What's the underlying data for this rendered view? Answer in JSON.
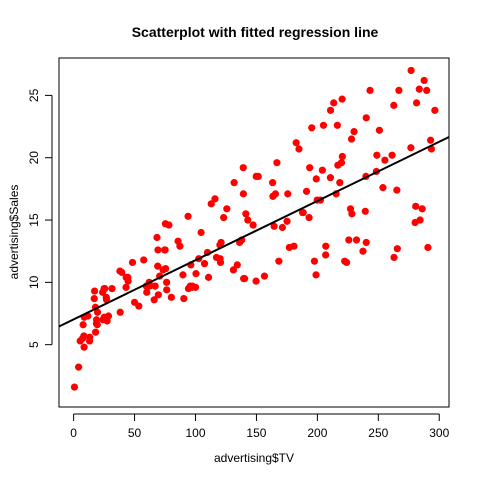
{
  "chart_data": {
    "type": "scatter",
    "title": "Scatterplot with fitted regression line",
    "xlabel": "advertising$TV",
    "ylabel": "advertising$Sales",
    "xlim": [
      -12,
      308
    ],
    "ylim": [
      0,
      28
    ],
    "x_ticks": [
      "0",
      "50",
      "100",
      "150",
      "200",
      "250",
      "300"
    ],
    "y_ticks": [
      "5",
      "10",
      "15",
      "20",
      "25"
    ],
    "grid": false,
    "point_color": "#ff0000",
    "line_color": "#000000",
    "regression_line": {
      "intercept": 7.03,
      "slope": 0.0475
    },
    "points": [
      [
        0.7,
        1.6
      ],
      [
        4.1,
        3.2
      ],
      [
        5.4,
        5.3
      ],
      [
        7.3,
        5.5
      ],
      [
        7.8,
        6.6
      ],
      [
        8.4,
        5.7
      ],
      [
        8.6,
        4.8
      ],
      [
        8.7,
        7.2
      ],
      [
        11.7,
        7.3
      ],
      [
        13.1,
        5.3
      ],
      [
        13.2,
        5.6
      ],
      [
        16.9,
        8.7
      ],
      [
        17.2,
        9.3
      ],
      [
        17.9,
        8.0
      ],
      [
        18.7,
        6.7
      ],
      [
        19.4,
        6.6
      ],
      [
        18.8,
        7.0
      ],
      [
        19.6,
        7.6
      ],
      [
        23.8,
        9.2
      ],
      [
        25.0,
        9.5
      ],
      [
        25.1,
        7.2
      ],
      [
        25.6,
        9.5
      ],
      [
        26.8,
        8.8
      ],
      [
        27.5,
        6.9
      ],
      [
        28.6,
        7.3
      ],
      [
        31.5,
        9.5
      ],
      [
        38.0,
        10.9
      ],
      [
        38.2,
        7.6
      ],
      [
        39.5,
        10.8
      ],
      [
        43.0,
        9.6
      ],
      [
        43.1,
        10.4
      ],
      [
        44.5,
        10.4
      ],
      [
        44.7,
        10.1
      ],
      [
        48.3,
        11.6
      ],
      [
        50.0,
        8.4
      ],
      [
        53.5,
        8.1
      ],
      [
        57.5,
        11.8
      ],
      [
        59.6,
        9.7
      ],
      [
        62.3,
        9.7
      ],
      [
        66.1,
        8.6
      ],
      [
        66.9,
        9.7
      ],
      [
        68.4,
        13.6
      ],
      [
        69.0,
        11.3
      ],
      [
        69.2,
        12.6
      ],
      [
        70.6,
        10.5
      ],
      [
        73.4,
        11.0
      ],
      [
        75.1,
        12.6
      ],
      [
        75.3,
        14.7
      ],
      [
        75.5,
        11.1
      ],
      [
        76.3,
        10.0
      ],
      [
        76.4,
        9.4
      ],
      [
        78.2,
        14.6
      ],
      [
        80.2,
        8.8
      ],
      [
        85.7,
        13.3
      ],
      [
        87.2,
        12.9
      ],
      [
        89.7,
        10.6
      ],
      [
        90.4,
        8.7
      ],
      [
        93.9,
        15.3
      ],
      [
        94.2,
        9.5
      ],
      [
        95.7,
        9.7
      ],
      [
        96.2,
        11.4
      ],
      [
        97.2,
        9.6
      ],
      [
        97.5,
        9.7
      ],
      [
        100.4,
        10.7
      ],
      [
        102.7,
        11.9
      ],
      [
        104.6,
        14.0
      ],
      [
        107.4,
        11.5
      ],
      [
        109.8,
        12.4
      ],
      [
        110.7,
        10.4
      ],
      [
        112.9,
        16.3
      ],
      [
        116.0,
        16.7
      ],
      [
        117.2,
        12.0
      ],
      [
        120.2,
        11.9
      ],
      [
        120.5,
        11.6
      ],
      [
        121.0,
        13.2
      ],
      [
        123.1,
        15.2
      ],
      [
        125.7,
        15.9
      ],
      [
        131.1,
        11.0
      ],
      [
        131.7,
        18.0
      ],
      [
        134.3,
        11.4
      ],
      [
        136.2,
        13.2
      ],
      [
        137.9,
        13.4
      ],
      [
        139.3,
        17.1
      ],
      [
        139.5,
        10.3
      ],
      [
        139.2,
        19.2
      ],
      [
        140.3,
        10.3
      ],
      [
        141.3,
        15.5
      ],
      [
        142.9,
        15.0
      ],
      [
        147.3,
        14.6
      ],
      [
        149.7,
        10.1
      ],
      [
        149.8,
        18.5
      ],
      [
        151.5,
        18.5
      ],
      [
        156.6,
        10.5
      ],
      [
        163.3,
        18.0
      ],
      [
        163.5,
        16.9
      ],
      [
        164.5,
        14.5
      ],
      [
        165.6,
        17.1
      ],
      [
        166.8,
        19.6
      ],
      [
        168.4,
        11.7
      ],
      [
        171.3,
        14.4
      ],
      [
        175.1,
        14.9
      ],
      [
        175.7,
        17.1
      ],
      [
        177.0,
        12.8
      ],
      [
        180.8,
        12.9
      ],
      [
        182.6,
        21.2
      ],
      [
        184.9,
        20.7
      ],
      [
        187.8,
        15.6
      ],
      [
        188.4,
        15.6
      ],
      [
        191.1,
        17.3
      ],
      [
        193.2,
        15.2
      ],
      [
        193.7,
        19.2
      ],
      [
        195.4,
        22.4
      ],
      [
        197.6,
        11.7
      ],
      [
        198.9,
        10.6
      ],
      [
        199.1,
        18.3
      ],
      [
        199.8,
        16.6
      ],
      [
        202.5,
        16.6
      ],
      [
        204.1,
        19.0
      ],
      [
        205.0,
        22.6
      ],
      [
        206.8,
        12.2
      ],
      [
        206.9,
        12.9
      ],
      [
        210.7,
        18.4
      ],
      [
        210.8,
        23.8
      ],
      [
        213.4,
        24.4
      ],
      [
        215.4,
        17.1
      ],
      [
        216.4,
        22.6
      ],
      [
        216.8,
        19.4
      ],
      [
        218.4,
        18.0
      ],
      [
        219.8,
        19.6
      ],
      [
        220.3,
        24.7
      ],
      [
        220.5,
        20.1
      ],
      [
        222.4,
        11.7
      ],
      [
        224.0,
        11.6
      ],
      [
        225.8,
        13.4
      ],
      [
        227.2,
        15.9
      ],
      [
        228.0,
        21.5
      ],
      [
        228.3,
        15.5
      ],
      [
        230.1,
        22.1
      ],
      [
        232.1,
        13.4
      ],
      [
        237.4,
        12.5
      ],
      [
        239.3,
        15.7
      ],
      [
        239.8,
        18.5
      ],
      [
        240.1,
        13.2
      ],
      [
        240.1,
        23.2
      ],
      [
        243.2,
        25.4
      ],
      [
        248.4,
        18.9
      ],
      [
        248.8,
        20.2
      ],
      [
        250.9,
        22.2
      ],
      [
        253.8,
        17.6
      ],
      [
        255.4,
        19.8
      ],
      [
        261.3,
        20.2
      ],
      [
        262.7,
        24.2
      ],
      [
        262.9,
        12.0
      ],
      [
        265.2,
        17.4
      ],
      [
        265.6,
        12.7
      ],
      [
        266.9,
        25.4
      ],
      [
        276.7,
        20.8
      ],
      [
        276.9,
        27.0
      ],
      [
        280.2,
        14.8
      ],
      [
        280.7,
        16.1
      ],
      [
        281.4,
        24.4
      ],
      [
        283.6,
        25.5
      ],
      [
        284.3,
        15.0
      ],
      [
        286.0,
        15.9
      ],
      [
        287.6,
        26.2
      ],
      [
        289.7,
        25.4
      ],
      [
        290.7,
        12.8
      ],
      [
        292.9,
        21.4
      ],
      [
        293.6,
        20.7
      ],
      [
        296.4,
        23.8
      ],
      [
        100.0,
        9.6
      ],
      [
        120.0,
        13.0
      ],
      [
        60.0,
        9.2
      ],
      [
        27.0,
        8.6
      ],
      [
        74.7,
        12.6
      ],
      [
        62.0,
        10.0
      ],
      [
        69.5,
        9.0
      ],
      [
        24.0,
        7.0
      ],
      [
        18.0,
        6.0
      ]
    ]
  }
}
